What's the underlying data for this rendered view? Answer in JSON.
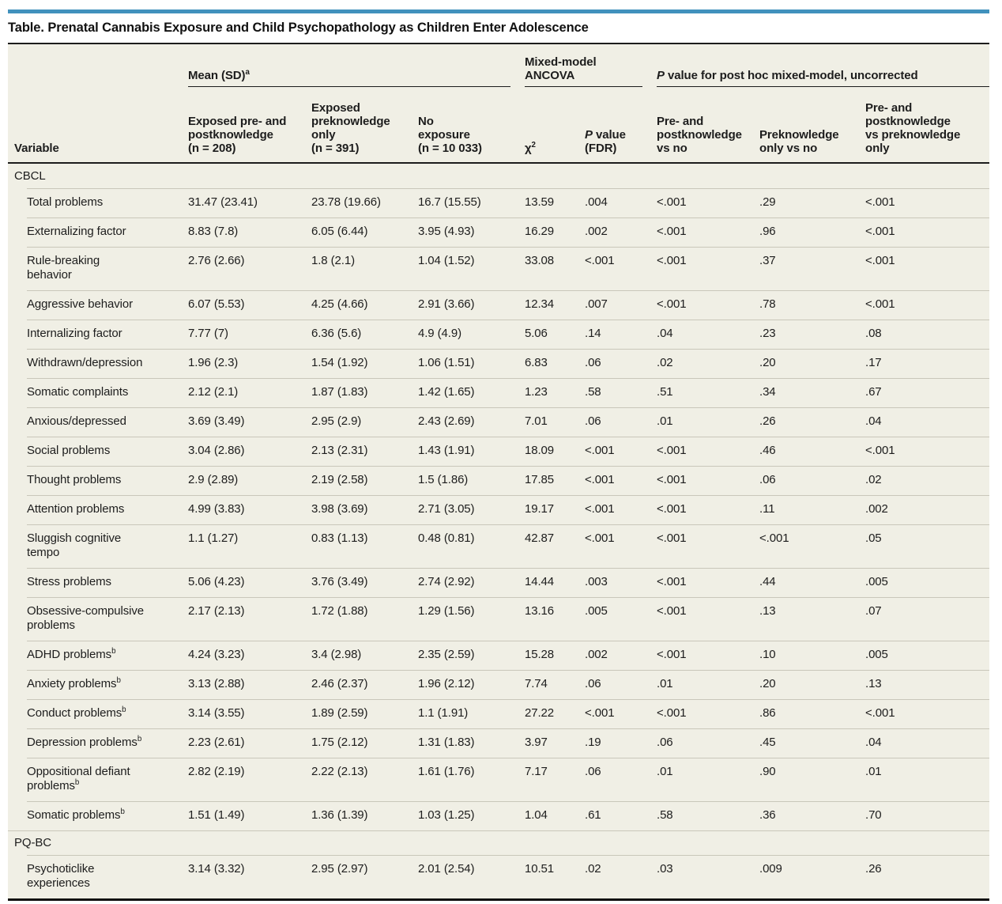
{
  "accent_color": "#4191bd",
  "title": "Table. Prenatal Cannabis Exposure and Child Psychopathology as Children Enter Adolescence",
  "header": {
    "variable_label": "Variable",
    "groups": [
      {
        "label": "Mean (SD)",
        "sup": "a"
      },
      {
        "label": "Mixed-model\nANCOVA"
      },
      {
        "pre_italic": "P",
        "label": " value for post hoc mixed-model, uncorrected"
      }
    ],
    "columns": [
      {
        "label": "Exposed pre- and\npostknowledge\n(n = 208)"
      },
      {
        "label": "Exposed\npreknowledge\nonly\n(n = 391)"
      },
      {
        "label": "No\nexposure\n(n = 10 033)"
      },
      {
        "label": "χ",
        "sup": "2"
      },
      {
        "pre_italic": "P",
        "label": " value\n(FDR)"
      },
      {
        "label": "Pre- and\npostknowledge\nvs no"
      },
      {
        "label": "Preknowledge\nonly vs no"
      },
      {
        "label": "Pre- and\npostknowledge\nvs preknowledge\nonly"
      }
    ]
  },
  "sections": [
    {
      "name": "CBCL",
      "rows": [
        {
          "label": "Total problems",
          "values": [
            "31.47 (23.41)",
            "23.78 (19.66)",
            "16.7 (15.55)",
            "13.59",
            ".004",
            "<.001",
            ".29",
            "<.001"
          ]
        },
        {
          "label": "Externalizing factor",
          "values": [
            "8.83 (7.8)",
            "6.05 (6.44)",
            "3.95 (4.93)",
            "16.29",
            ".002",
            "<.001",
            ".96",
            "<.001"
          ]
        },
        {
          "label": "Rule-breaking\nbehavior",
          "values": [
            "2.76 (2.66)",
            "1.8 (2.1)",
            "1.04 (1.52)",
            "33.08",
            "<.001",
            "<.001",
            ".37",
            "<.001"
          ]
        },
        {
          "label": "Aggressive behavior",
          "values": [
            "6.07 (5.53)",
            "4.25 (4.66)",
            "2.91 (3.66)",
            "12.34",
            ".007",
            "<.001",
            ".78",
            "<.001"
          ]
        },
        {
          "label": "Internalizing factor",
          "values": [
            "7.77 (7)",
            "6.36 (5.6)",
            "4.9 (4.9)",
            "5.06",
            ".14",
            ".04",
            ".23",
            ".08"
          ]
        },
        {
          "label": "Withdrawn/depression",
          "values": [
            "1.96 (2.3)",
            "1.54 (1.92)",
            "1.06 (1.51)",
            "6.83",
            ".06",
            ".02",
            ".20",
            ".17"
          ]
        },
        {
          "label": "Somatic complaints",
          "values": [
            "2.12 (2.1)",
            "1.87 (1.83)",
            "1.42 (1.65)",
            "1.23",
            ".58",
            ".51",
            ".34",
            ".67"
          ]
        },
        {
          "label": "Anxious/depressed",
          "values": [
            "3.69 (3.49)",
            "2.95 (2.9)",
            "2.43 (2.69)",
            "7.01",
            ".06",
            ".01",
            ".26",
            ".04"
          ]
        },
        {
          "label": "Social problems",
          "values": [
            "3.04 (2.86)",
            "2.13 (2.31)",
            "1.43 (1.91)",
            "18.09",
            "<.001",
            "<.001",
            ".46",
            "<.001"
          ]
        },
        {
          "label": "Thought problems",
          "values": [
            "2.9 (2.89)",
            "2.19 (2.58)",
            "1.5 (1.86)",
            "17.85",
            "<.001",
            "<.001",
            ".06",
            ".02"
          ]
        },
        {
          "label": "Attention problems",
          "values": [
            "4.99 (3.83)",
            "3.98 (3.69)",
            "2.71 (3.05)",
            "19.17",
            "<.001",
            "<.001",
            ".11",
            ".002"
          ]
        },
        {
          "label": "Sluggish cognitive\ntempo",
          "values": [
            "1.1 (1.27)",
            "0.83 (1.13)",
            "0.48 (0.81)",
            "42.87",
            "<.001",
            "<.001",
            "<.001",
            ".05"
          ]
        },
        {
          "label": "Stress problems",
          "values": [
            "5.06 (4.23)",
            "3.76 (3.49)",
            "2.74 (2.92)",
            "14.44",
            ".003",
            "<.001",
            ".44",
            ".005"
          ]
        },
        {
          "label": "Obsessive-compulsive\nproblems",
          "values": [
            "2.17 (2.13)",
            "1.72 (1.88)",
            "1.29 (1.56)",
            "13.16",
            ".005",
            "<.001",
            ".13",
            ".07"
          ]
        },
        {
          "label": "ADHD problems",
          "sup": "b",
          "values": [
            "4.24 (3.23)",
            "3.4 (2.98)",
            "2.35 (2.59)",
            "15.28",
            ".002",
            "<.001",
            ".10",
            ".005"
          ]
        },
        {
          "label": "Anxiety problems",
          "sup": "b",
          "values": [
            "3.13 (2.88)",
            "2.46 (2.37)",
            "1.96 (2.12)",
            "7.74",
            ".06",
            ".01",
            ".20",
            ".13"
          ]
        },
        {
          "label": "Conduct problems",
          "sup": "b",
          "values": [
            "3.14 (3.55)",
            "1.89 (2.59)",
            "1.1 (1.91)",
            "27.22",
            "<.001",
            "<.001",
            ".86",
            "<.001"
          ]
        },
        {
          "label": "Depression problems",
          "sup": "b",
          "values": [
            "2.23 (2.61)",
            "1.75 (2.12)",
            "1.31 (1.83)",
            "3.97",
            ".19",
            ".06",
            ".45",
            ".04"
          ]
        },
        {
          "label": "Oppositional defiant\nproblems",
          "sup": "b",
          "values": [
            "2.82 (2.19)",
            "2.22 (2.13)",
            "1.61 (1.76)",
            "7.17",
            ".06",
            ".01",
            ".90",
            ".01"
          ]
        },
        {
          "label": "Somatic problems",
          "sup": "b",
          "values": [
            "1.51 (1.49)",
            "1.36 (1.39)",
            "1.03 (1.25)",
            "1.04",
            ".61",
            ".58",
            ".36",
            ".70"
          ]
        }
      ]
    },
    {
      "name": "PQ-BC",
      "rows": [
        {
          "label": "Psychoticlike\nexperiences",
          "values": [
            "3.14 (3.32)",
            "2.95 (2.97)",
            "2.01 (2.54)",
            "10.51",
            ".02",
            ".03",
            ".009",
            ".26"
          ]
        }
      ]
    }
  ]
}
